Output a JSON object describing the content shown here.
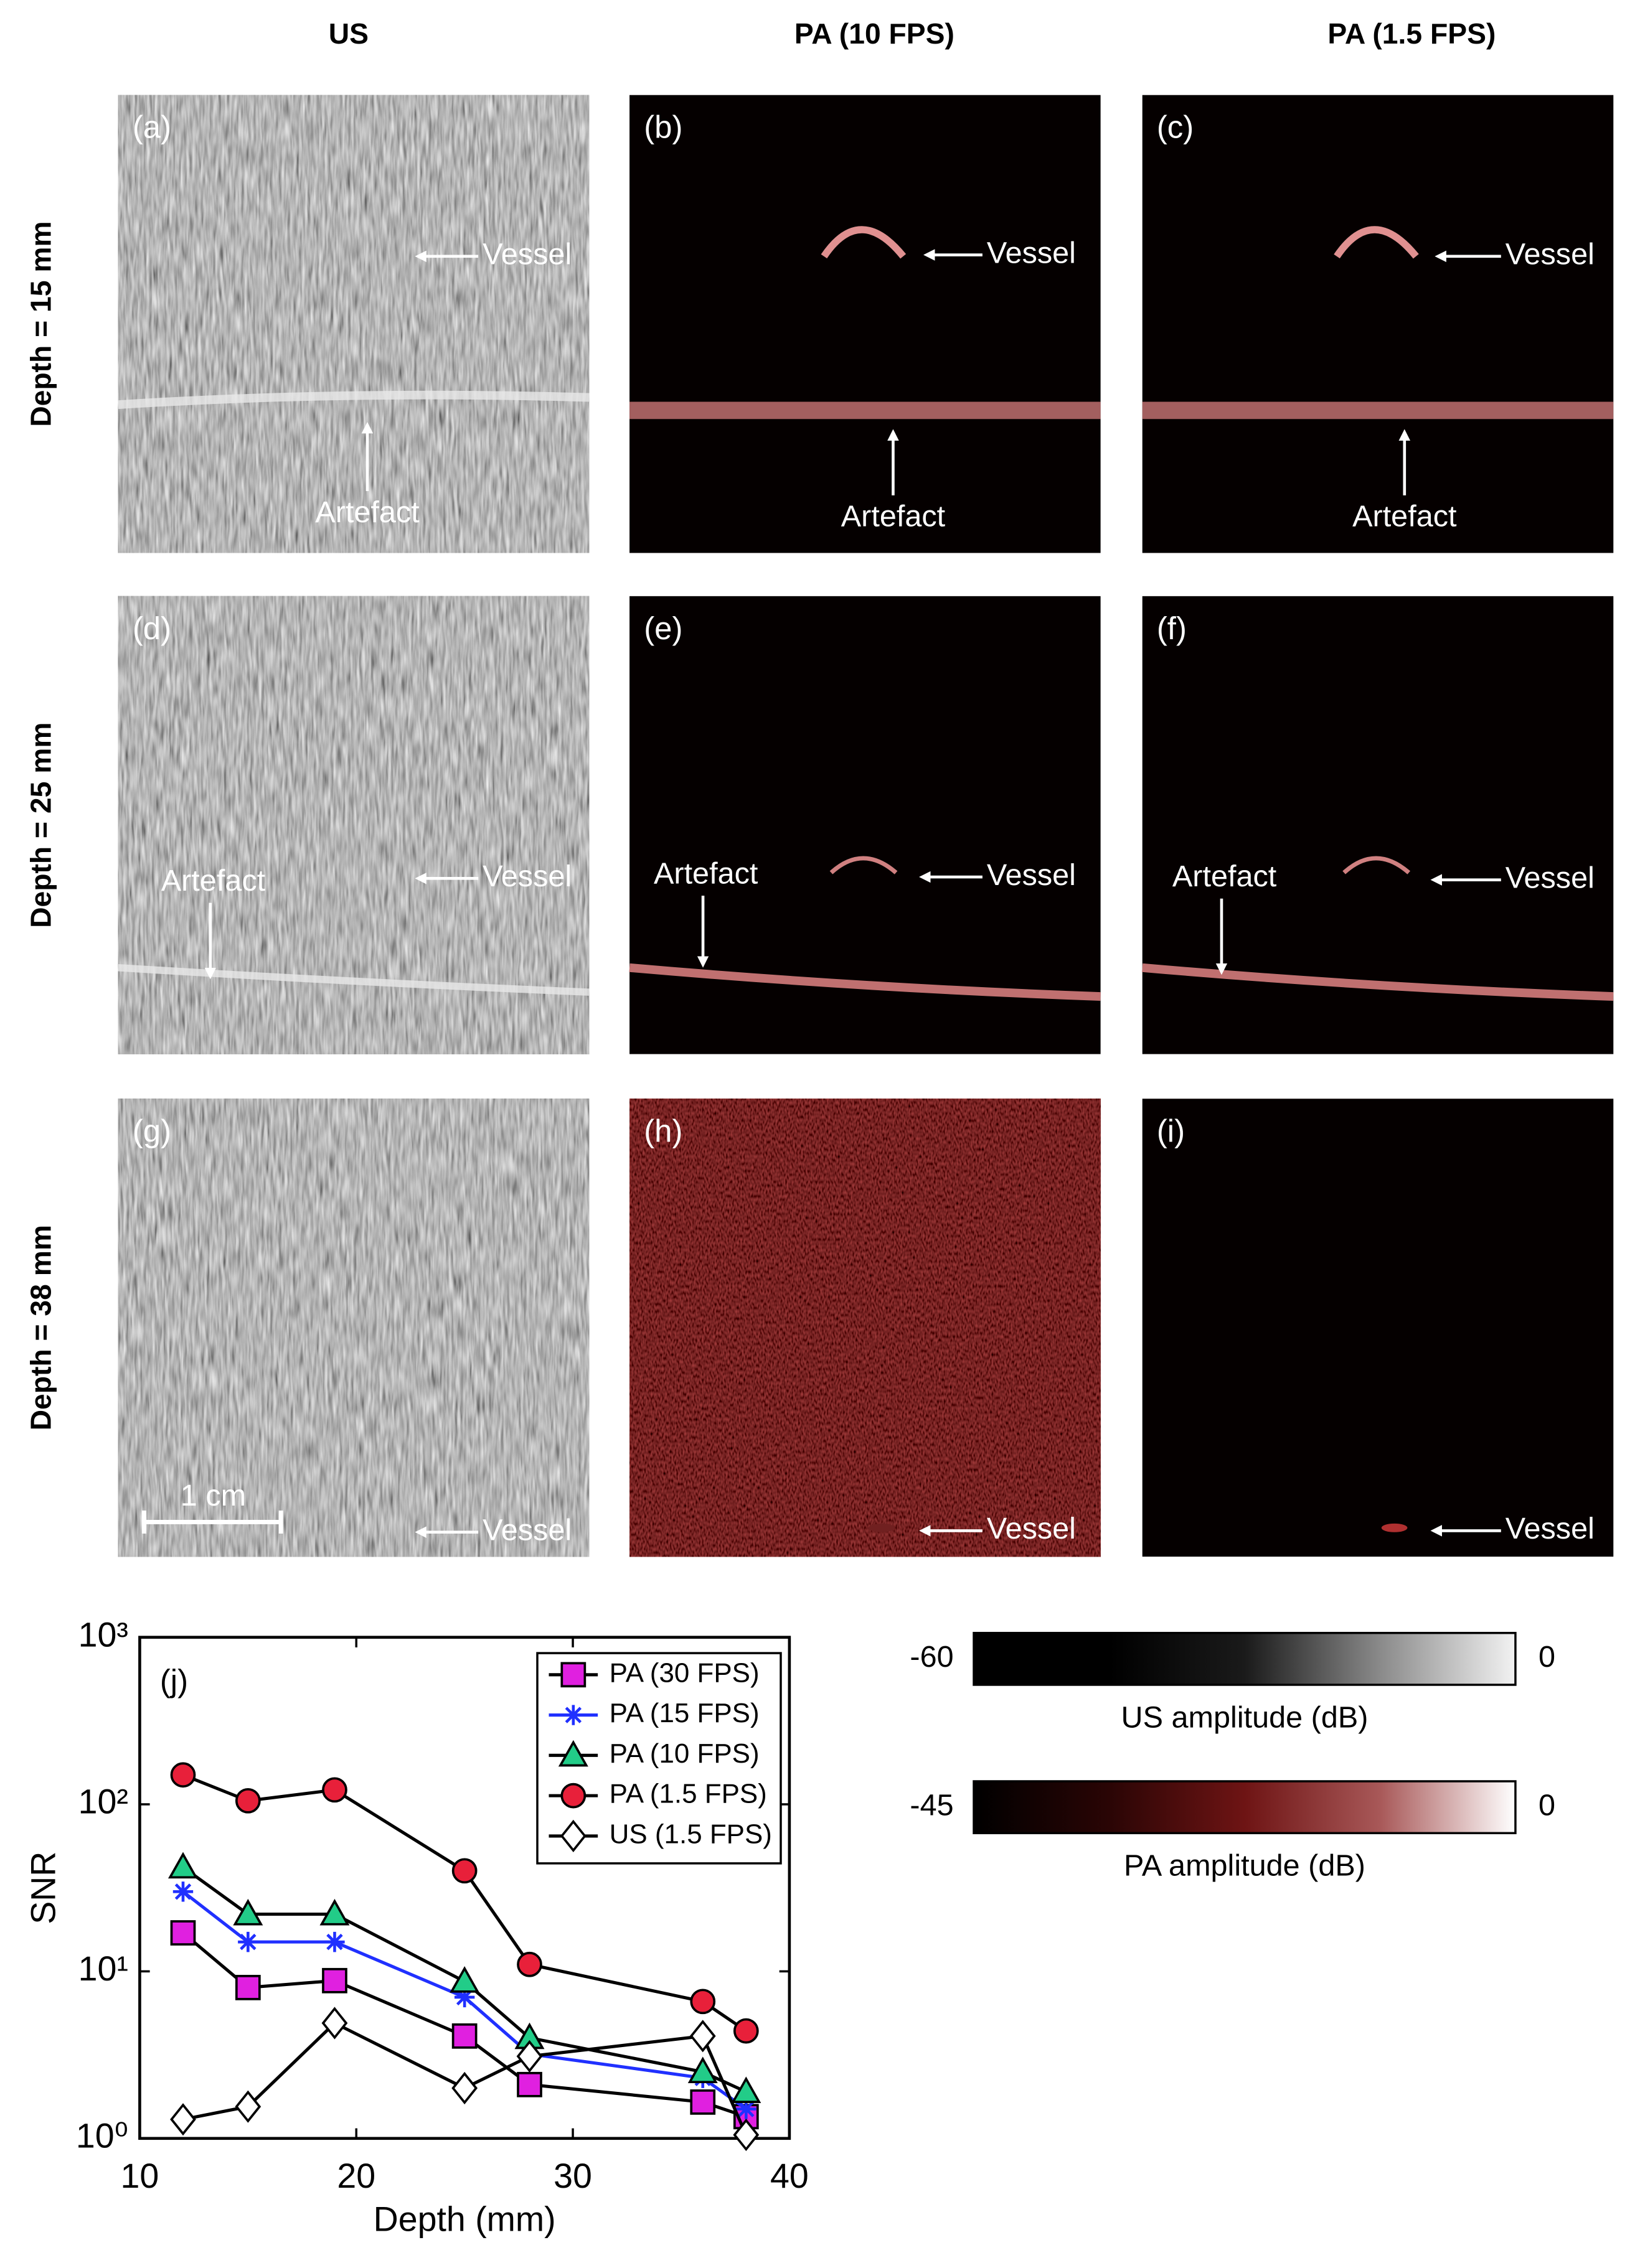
{
  "figure": {
    "columns": [
      "US",
      "PA (10 FPS)",
      "PA (1.5 FPS)"
    ],
    "rows": [
      "Depth = 15 mm",
      "Depth = 25 mm",
      "Depth = 38 mm"
    ],
    "panels": [
      {
        "label": "(a)",
        "annotations": [
          "Vessel",
          "Artefact"
        ]
      },
      {
        "label": "(b)",
        "annotations": [
          "Vessel",
          "Artefact"
        ]
      },
      {
        "label": "(c)",
        "annotations": [
          "Vessel",
          "Artefact"
        ]
      },
      {
        "label": "(d)",
        "annotations": [
          "Vessel",
          "Artefact"
        ]
      },
      {
        "label": "(e)",
        "annotations": [
          "Vessel",
          "Artefact"
        ]
      },
      {
        "label": "(f)",
        "annotations": [
          "Vessel",
          "Artefact"
        ]
      },
      {
        "label": "(g)",
        "annotations": [
          "Vessel",
          "1 cm"
        ]
      },
      {
        "label": "(h)",
        "annotations": [
          "Vessel"
        ]
      },
      {
        "label": "(i)",
        "annotations": [
          "Vessel"
        ]
      }
    ],
    "colorbars": [
      {
        "min": -60,
        "max": 0,
        "label": "US amplitude (dB)",
        "colors": [
          "#000000",
          "#000000",
          "#1a1a1a",
          "#8a8a8a",
          "#f2f2f2"
        ]
      },
      {
        "min": -45,
        "max": 0,
        "label": "PA amplitude (dB)",
        "colors": [
          "#000000",
          "#2a0505",
          "#6e1414",
          "#a85858",
          "#ffffff"
        ]
      }
    ]
  },
  "chart_data": {
    "type": "line",
    "annotation": "(j)",
    "x_label": "Depth (mm)",
    "y_label": "SNR",
    "x": [
      12,
      15,
      19,
      25,
      28,
      36,
      38
    ],
    "xlim": [
      10,
      40
    ],
    "xticks": [
      10,
      20,
      30,
      40
    ],
    "ylim": [
      1,
      1000
    ],
    "yticks": [
      {
        "value": 1,
        "label": "10⁰"
      },
      {
        "value": 10,
        "label": "10¹"
      },
      {
        "value": 100,
        "label": "10²"
      },
      {
        "value": 1000,
        "label": "10³"
      }
    ],
    "log_y": true,
    "legend": "upper right",
    "series": [
      {
        "name": "PA (30 FPS)",
        "color": "#e020e0",
        "line_color": "#000000",
        "marker": "square",
        "values": [
          17,
          8,
          8.8,
          4.1,
          2.1,
          1.65,
          1.35
        ]
      },
      {
        "name": "PA (15 FPS)",
        "color": "#2030ff",
        "line_color": "#2030ff",
        "marker": "asterisk",
        "values": [
          30,
          15,
          15,
          7,
          3.2,
          2.3,
          1.5
        ]
      },
      {
        "name": "PA (10 FPS)",
        "color": "#22cc88",
        "line_color": "#000000",
        "marker": "triangle",
        "values": [
          42,
          22,
          22,
          8.7,
          4.0,
          2.5,
          1.9
        ]
      },
      {
        "name": "PA (1.5 FPS)",
        "color": "#e8203a",
        "line_color": "#000000",
        "marker": "circle",
        "values": [
          150,
          105,
          122,
          40,
          11,
          6.6,
          4.4
        ]
      },
      {
        "name": "US (1.5 FPS)",
        "color": "#ffffff",
        "line_color": "#000000",
        "marker": "diamond",
        "values": [
          1.3,
          1.55,
          4.9,
          2.0,
          3.1,
          4.1,
          1.05
        ]
      }
    ]
  }
}
